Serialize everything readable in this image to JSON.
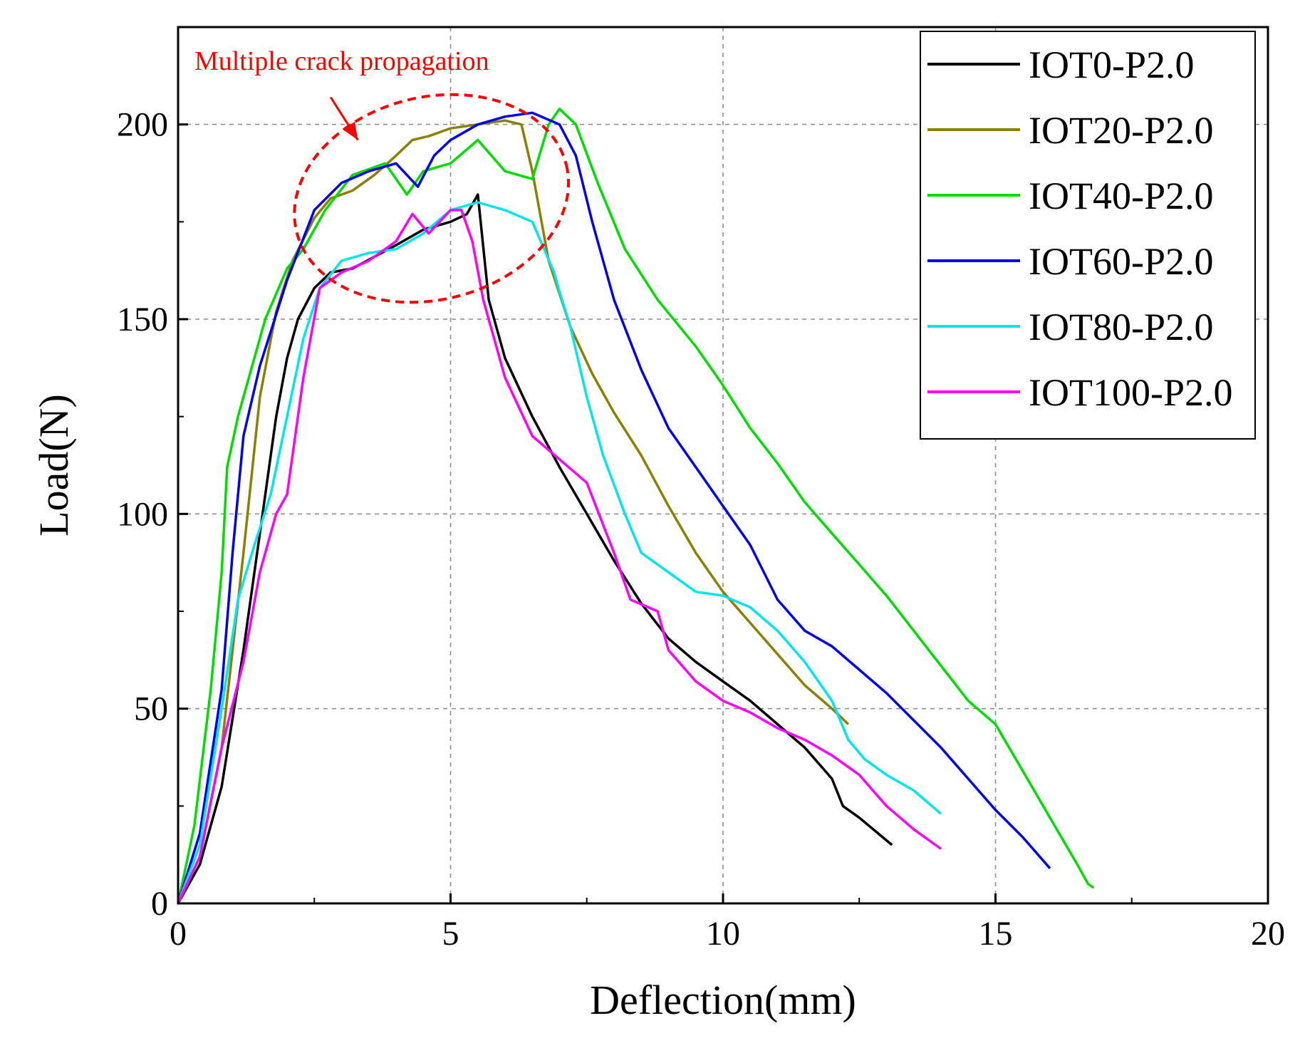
{
  "chart_data": {
    "type": "line",
    "title": "",
    "xlabel": "Deflection(mm)",
    "ylabel": "Load(N)",
    "xlim": [
      0,
      20
    ],
    "ylim": [
      0,
      225
    ],
    "xticks": [
      0,
      5,
      10,
      15,
      20
    ],
    "yticks": [
      0,
      50,
      100,
      150,
      200
    ],
    "grid": true,
    "legend_position": "top-right",
    "annotation": {
      "text": "Multiple crack propagation",
      "color": "#ff0000"
    },
    "series": [
      {
        "name": "IOT0-P2.0",
        "color": "#000000",
        "x": [
          0,
          0.4,
          0.8,
          1.2,
          1.5,
          1.8,
          2.0,
          2.2,
          2.5,
          2.8,
          3.2,
          3.6,
          4.0,
          4.5,
          5.0,
          5.3,
          5.5,
          5.7,
          6.0,
          6.5,
          7.0,
          7.5,
          8.0,
          8.5,
          9.0,
          9.5,
          10.0,
          10.5,
          11.0,
          11.5,
          12.0,
          12.2,
          12.5,
          13.1
        ],
        "y": [
          0,
          10,
          30,
          65,
          95,
          125,
          140,
          150,
          158,
          162,
          163,
          166,
          169,
          173,
          175,
          177,
          182,
          155,
          140,
          125,
          112,
          100,
          88,
          77,
          68,
          62,
          57,
          52,
          46,
          40,
          32,
          25,
          22,
          15
        ]
      },
      {
        "name": "IOT20-P2.0",
        "color": "#8b8000",
        "x": [
          0,
          0.4,
          0.8,
          1.2,
          1.5,
          1.8,
          2.1,
          2.5,
          2.8,
          3.2,
          3.6,
          4.0,
          4.3,
          4.6,
          5.0,
          5.5,
          6.0,
          6.3,
          6.5,
          6.8,
          7.2,
          7.6,
          8.0,
          8.5,
          9.0,
          9.5,
          10.0,
          10.5,
          11.0,
          11.5,
          12.0,
          12.3
        ],
        "y": [
          0,
          12,
          40,
          90,
          130,
          152,
          165,
          176,
          181,
          183,
          187,
          192,
          196,
          197,
          199,
          200,
          201,
          200,
          188,
          165,
          148,
          136,
          126,
          115,
          102,
          90,
          80,
          72,
          64,
          56,
          50,
          46
        ]
      },
      {
        "name": "IOT40-P2.0",
        "color": "#00dd00",
        "x": [
          0,
          0.3,
          0.6,
          0.8,
          0.9,
          1.1,
          1.3,
          1.6,
          2.0,
          2.3,
          2.7,
          3.2,
          3.8,
          4.2,
          4.5,
          5.0,
          5.5,
          6.0,
          6.5,
          6.8,
          7.0,
          7.3,
          7.7,
          8.2,
          8.8,
          9.5,
          10.0,
          10.5,
          11.0,
          11.5,
          12.0,
          12.5,
          13.0,
          13.5,
          14.0,
          14.5,
          15.0,
          15.5,
          16.0,
          16.5,
          16.7,
          16.8
        ],
        "y": [
          0,
          20,
          55,
          85,
          112,
          125,
          135,
          150,
          163,
          168,
          178,
          187,
          190,
          182,
          188,
          190,
          196,
          188,
          186,
          200,
          204,
          200,
          185,
          168,
          155,
          143,
          133,
          122,
          113,
          103,
          95,
          87,
          79,
          70,
          61,
          52,
          46,
          34,
          22,
          10,
          5,
          4
        ]
      },
      {
        "name": "IOT60-P2.0",
        "color": "#0000ee",
        "x": [
          0,
          0.4,
          0.8,
          1.0,
          1.2,
          1.5,
          2.0,
          2.5,
          3.0,
          3.5,
          4.0,
          4.4,
          4.7,
          5.0,
          5.5,
          6.0,
          6.5,
          7.0,
          7.3,
          7.6,
          8.0,
          8.5,
          9.0,
          9.5,
          10.0,
          10.5,
          11.0,
          11.5,
          12.0,
          12.5,
          13.0,
          13.5,
          14.0,
          14.5,
          15.0,
          15.5,
          16.0
        ],
        "y": [
          0,
          18,
          55,
          90,
          120,
          138,
          160,
          178,
          185,
          188,
          190,
          184,
          192,
          196,
          200,
          202,
          203,
          200,
          192,
          175,
          155,
          137,
          122,
          112,
          102,
          92,
          78,
          70,
          66,
          60,
          54,
          47,
          40,
          32,
          24,
          17,
          9
        ]
      },
      {
        "name": "IOT80-P2.0",
        "color": "#00e5ee",
        "x": [
          0,
          0.4,
          0.8,
          1.1,
          1.4,
          1.7,
          2.0,
          2.3,
          2.6,
          3.0,
          3.5,
          4.0,
          4.5,
          5.0,
          5.5,
          6.0,
          6.5,
          6.9,
          7.0,
          7.2,
          7.5,
          7.8,
          8.2,
          8.5,
          9.0,
          9.5,
          10.0,
          10.5,
          11.0,
          11.5,
          12.0,
          12.3,
          12.6,
          13.0,
          13.5,
          14.0
        ],
        "y": [
          0,
          15,
          50,
          78,
          92,
          105,
          125,
          145,
          158,
          165,
          167,
          168,
          172,
          178,
          180,
          178,
          175,
          162,
          157,
          148,
          130,
          115,
          100,
          90,
          85,
          80,
          79,
          76,
          70,
          62,
          52,
          42,
          37,
          33,
          29,
          23
        ]
      },
      {
        "name": "IOT100-P2.0",
        "color": "#ff00ff",
        "x": [
          0,
          0.4,
          0.8,
          1.2,
          1.5,
          1.8,
          2.0,
          2.3,
          2.6,
          3.0,
          3.5,
          4.0,
          4.3,
          4.6,
          5.0,
          5.2,
          5.4,
          5.6,
          6.0,
          6.5,
          7.0,
          7.5,
          8.0,
          8.3,
          8.8,
          9.0,
          9.5,
          10.0,
          10.5,
          11.0,
          11.5,
          12.0,
          12.5,
          13.0,
          13.5,
          14.0
        ],
        "y": [
          0,
          12,
          40,
          62,
          85,
          100,
          105,
          135,
          158,
          162,
          165,
          170,
          177,
          172,
          178,
          178,
          170,
          155,
          135,
          120,
          114,
          108,
          90,
          78,
          75,
          65,
          57,
          52,
          49,
          45,
          42,
          38,
          33,
          25,
          19,
          14
        ]
      }
    ]
  }
}
